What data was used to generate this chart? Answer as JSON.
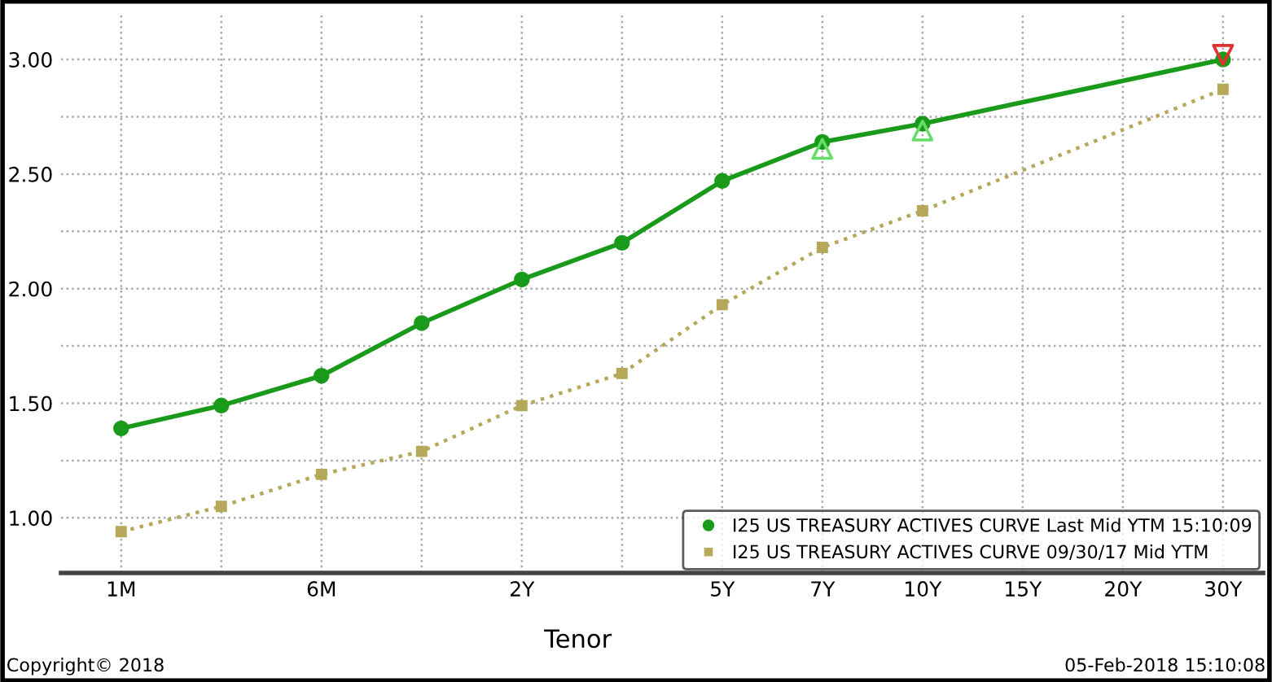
{
  "chart_data": {
    "type": "line",
    "xlabel": "Tenor",
    "categories": [
      "1M",
      null,
      "6M",
      null,
      "2Y",
      null,
      "5Y",
      "7Y",
      "10Y",
      "15Y",
      "20Y",
      "30Y"
    ],
    "series": [
      {
        "name": "I25 US TREASURY ACTIVES CURVE Last Mid YTM 15:10:09",
        "color": "#1a9a1a",
        "marker": "circle",
        "line_style": "solid",
        "values": [
          1.39,
          1.49,
          1.62,
          1.85,
          2.04,
          2.2,
          2.47,
          2.64,
          2.72,
          null,
          null,
          3.0
        ]
      },
      {
        "name": "I25 US TREASURY ACTIVES CURVE 09/30/17 Mid YTM",
        "color": "#b5a85a",
        "marker": "square",
        "line_style": "dotted",
        "values": [
          0.94,
          1.05,
          1.19,
          1.29,
          1.49,
          1.63,
          1.93,
          2.18,
          2.34,
          null,
          null,
          2.87
        ]
      },
      {
        "type": "scatter",
        "color": "#66dd66",
        "marker": "triangle",
        "values": [
          null,
          null,
          null,
          null,
          null,
          null,
          null,
          2.61,
          2.69,
          null,
          null,
          null
        ]
      },
      {
        "type": "scatter",
        "color": "#e03030",
        "marker": "triangle_down",
        "values": [
          null,
          null,
          null,
          null,
          null,
          null,
          null,
          null,
          null,
          null,
          null,
          3.02
        ]
      }
    ],
    "ylim": [
      0.76,
      3.2
    ],
    "yticks": [
      {
        "value": 1.0,
        "label": "1.00"
      },
      {
        "value": 1.25,
        "label": null
      },
      {
        "value": 1.5,
        "label": "1.50"
      },
      {
        "value": 1.75,
        "label": null
      },
      {
        "value": 2.0,
        "label": "2.00"
      },
      {
        "value": 2.25,
        "label": null
      },
      {
        "value": 2.5,
        "label": "2.50"
      },
      {
        "value": 2.75,
        "label": null
      },
      {
        "value": 3.0,
        "label": "3.00"
      }
    ],
    "grid": true,
    "legend": "bottom right",
    "annotations": [
      "Copyright© 2018",
      "05-Feb-2018 15:10:08"
    ]
  }
}
